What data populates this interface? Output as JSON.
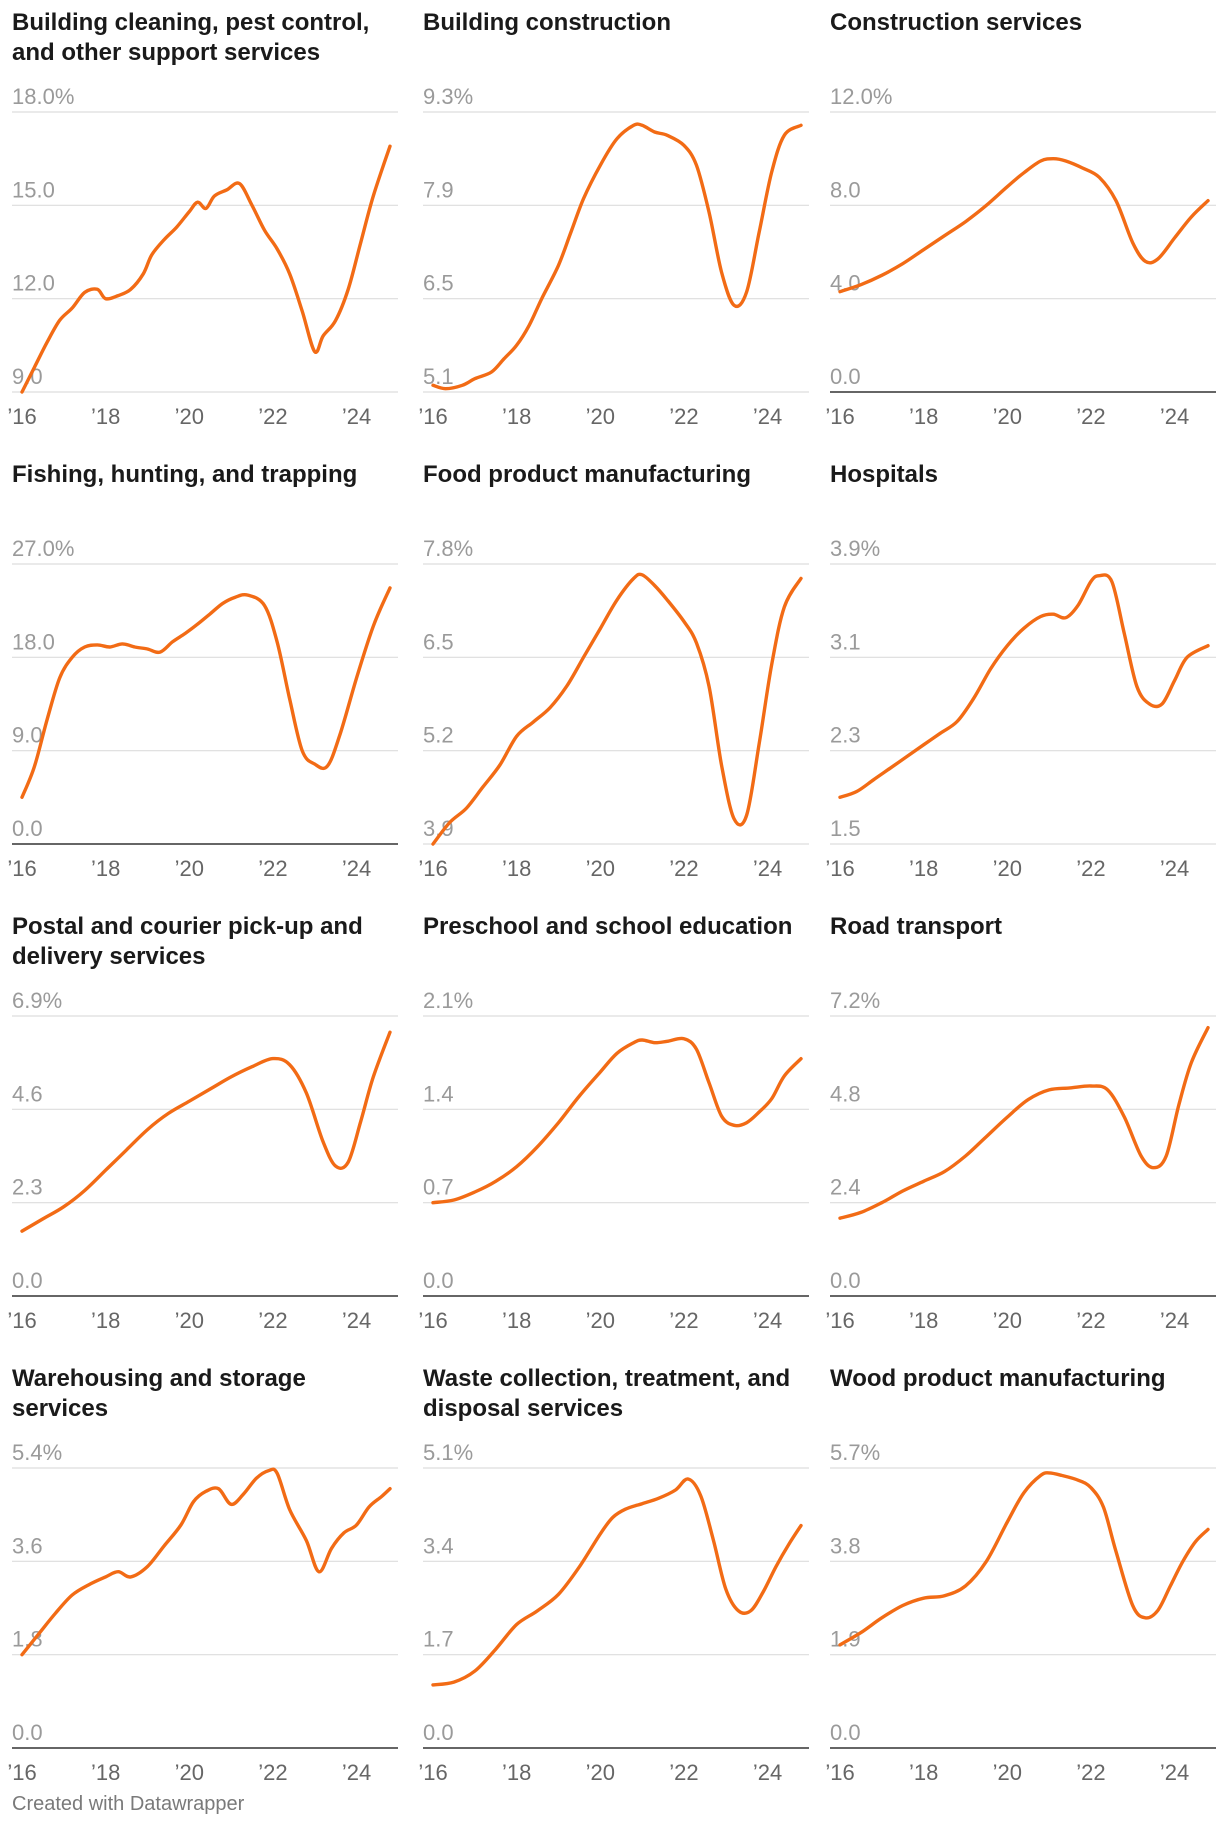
{
  "footer": "Created with Datawrapper",
  "colors": {
    "line": "#f26b15",
    "grid": "#dddddd",
    "baseline": "#333333"
  },
  "chart_data": [
    {
      "type": "line",
      "title": "Building cleaning, pest control, and other support services",
      "y_ticks": [
        "18.0%",
        "15.0",
        "12.0",
        "9.0"
      ],
      "ylim": [
        9.0,
        18.0
      ],
      "baseline_zero": false,
      "x_ticks": [
        "’16",
        "’18",
        "’20",
        "’22",
        "’24"
      ],
      "xlim": [
        2016,
        2024.8
      ],
      "x": [
        2016.0,
        2016.3,
        2016.6,
        2016.9,
        2017.2,
        2017.5,
        2017.8,
        2018.0,
        2018.3,
        2018.6,
        2018.9,
        2019.1,
        2019.4,
        2019.7,
        2020.0,
        2020.2,
        2020.4,
        2020.6,
        2020.9,
        2021.2,
        2021.5,
        2021.8,
        2022.1,
        2022.4,
        2022.7,
        2023.0,
        2023.2,
        2023.5,
        2023.8,
        2024.1,
        2024.4,
        2024.8
      ],
      "values": [
        9.0,
        9.8,
        10.6,
        11.3,
        11.7,
        12.2,
        12.3,
        12.0,
        12.1,
        12.3,
        12.8,
        13.4,
        13.9,
        14.3,
        14.8,
        15.1,
        14.9,
        15.3,
        15.5,
        15.7,
        15.0,
        14.2,
        13.6,
        12.8,
        11.6,
        10.3,
        10.8,
        11.3,
        12.3,
        13.8,
        15.3,
        16.9
      ]
    },
    {
      "type": "line",
      "title": "Building construction",
      "y_ticks": [
        "9.3%",
        "7.9",
        "6.5",
        "5.1"
      ],
      "ylim": [
        5.1,
        9.3
      ],
      "baseline_zero": false,
      "x_ticks": [
        "’16",
        "’18",
        "’20",
        "’22",
        "’24"
      ],
      "xlim": [
        2016,
        2024.8
      ],
      "x": [
        2016.0,
        2016.3,
        2016.7,
        2017.0,
        2017.4,
        2017.7,
        2018.0,
        2018.3,
        2018.6,
        2019.0,
        2019.3,
        2019.6,
        2020.0,
        2020.4,
        2020.8,
        2021.0,
        2021.3,
        2021.6,
        2022.0,
        2022.3,
        2022.6,
        2022.9,
        2023.2,
        2023.5,
        2023.8,
        2024.1,
        2024.4,
        2024.8
      ],
      "values": [
        5.2,
        5.15,
        5.2,
        5.3,
        5.4,
        5.6,
        5.8,
        6.1,
        6.5,
        7.0,
        7.5,
        8.0,
        8.5,
        8.9,
        9.1,
        9.1,
        9.0,
        8.95,
        8.8,
        8.5,
        7.8,
        6.9,
        6.4,
        6.6,
        7.5,
        8.4,
        8.95,
        9.1
      ]
    },
    {
      "type": "line",
      "title": "Construction services",
      "y_ticks": [
        "12.0%",
        "8.0",
        "4.0",
        "0.0"
      ],
      "ylim": [
        0.0,
        12.0
      ],
      "baseline_zero": true,
      "x_ticks": [
        "’16",
        "’18",
        "’20",
        "’22",
        "’24"
      ],
      "xlim": [
        2016,
        2024.8
      ],
      "x": [
        2016.0,
        2016.5,
        2017.0,
        2017.5,
        2018.0,
        2018.5,
        2019.0,
        2019.5,
        2020.0,
        2020.4,
        2020.8,
        2021.1,
        2021.4,
        2021.8,
        2022.2,
        2022.6,
        2023.0,
        2023.3,
        2023.6,
        2024.0,
        2024.4,
        2024.8
      ],
      "values": [
        4.3,
        4.6,
        5.0,
        5.5,
        6.1,
        6.7,
        7.3,
        8.0,
        8.8,
        9.4,
        9.9,
        10.0,
        9.9,
        9.6,
        9.2,
        8.2,
        6.4,
        5.6,
        5.7,
        6.6,
        7.5,
        8.2
      ]
    },
    {
      "type": "line",
      "title": "Fishing, hunting, and trapping",
      "y_ticks": [
        "27.0%",
        "18.0",
        "9.0",
        "0.0"
      ],
      "ylim": [
        0.0,
        27.0
      ],
      "baseline_zero": true,
      "x_ticks": [
        "’16",
        "’18",
        "’20",
        "’22",
        "’24"
      ],
      "xlim": [
        2016,
        2024.8
      ],
      "x": [
        2016.0,
        2016.3,
        2016.6,
        2016.9,
        2017.2,
        2017.5,
        2017.8,
        2018.1,
        2018.4,
        2018.7,
        2019.0,
        2019.3,
        2019.6,
        2019.9,
        2020.2,
        2020.5,
        2020.8,
        2021.1,
        2021.4,
        2021.8,
        2022.1,
        2022.4,
        2022.7,
        2023.0,
        2023.3,
        2023.6,
        2024.0,
        2024.4,
        2024.8
      ],
      "values": [
        4.5,
        7.5,
        12.0,
        16.0,
        18.0,
        19.0,
        19.2,
        19.0,
        19.3,
        19.0,
        18.8,
        18.5,
        19.5,
        20.3,
        21.2,
        22.2,
        23.2,
        23.8,
        24.0,
        23.0,
        19.5,
        14.0,
        9.0,
        7.7,
        7.5,
        10.5,
        16.0,
        21.0,
        24.7
      ]
    },
    {
      "type": "line",
      "title": "Food product manufacturing",
      "y_ticks": [
        "7.8%",
        "6.5",
        "5.2",
        "3.9"
      ],
      "ylim": [
        3.9,
        7.8
      ],
      "baseline_zero": false,
      "x_ticks": [
        "’16",
        "’18",
        "’20",
        "’22",
        "’24"
      ],
      "xlim": [
        2016,
        2024.8
      ],
      "x": [
        2016.0,
        2016.4,
        2016.8,
        2017.2,
        2017.6,
        2018.0,
        2018.4,
        2018.8,
        2019.2,
        2019.6,
        2020.0,
        2020.4,
        2020.8,
        2021.0,
        2021.3,
        2021.6,
        2022.0,
        2022.3,
        2022.6,
        2022.9,
        2023.2,
        2023.5,
        2023.8,
        2024.1,
        2024.4,
        2024.8
      ],
      "values": [
        3.9,
        4.2,
        4.4,
        4.7,
        5.0,
        5.4,
        5.6,
        5.8,
        6.1,
        6.5,
        6.9,
        7.3,
        7.6,
        7.65,
        7.5,
        7.3,
        7.0,
        6.7,
        6.1,
        5.0,
        4.25,
        4.3,
        5.3,
        6.4,
        7.2,
        7.6
      ]
    },
    {
      "type": "line",
      "title": "Hospitals",
      "y_ticks": [
        "3.9%",
        "3.1",
        "2.3",
        "1.5"
      ],
      "ylim": [
        1.5,
        3.9
      ],
      "baseline_zero": false,
      "x_ticks": [
        "’16",
        "’18",
        "’20",
        "’22",
        "’24"
      ],
      "xlim": [
        2016,
        2024.8
      ],
      "x": [
        2016.0,
        2016.4,
        2016.8,
        2017.2,
        2017.6,
        2018.0,
        2018.4,
        2018.8,
        2019.2,
        2019.6,
        2020.0,
        2020.4,
        2020.8,
        2021.1,
        2021.4,
        2021.7,
        2022.0,
        2022.2,
        2022.5,
        2022.8,
        2023.1,
        2023.4,
        2023.7,
        2024.0,
        2024.3,
        2024.8
      ],
      "values": [
        1.9,
        1.95,
        2.05,
        2.15,
        2.25,
        2.35,
        2.45,
        2.55,
        2.75,
        3.0,
        3.2,
        3.35,
        3.45,
        3.47,
        3.44,
        3.55,
        3.75,
        3.8,
        3.75,
        3.3,
        2.85,
        2.7,
        2.7,
        2.9,
        3.1,
        3.2
      ]
    },
    {
      "type": "line",
      "title": "Postal and courier pick-up and delivery services",
      "y_ticks": [
        "6.9%",
        "4.6",
        "2.3",
        "0.0"
      ],
      "ylim": [
        0.0,
        6.9
      ],
      "baseline_zero": true,
      "x_ticks": [
        "’16",
        "’18",
        "’20",
        "’22",
        "’24"
      ],
      "xlim": [
        2016,
        2024.8
      ],
      "x": [
        2016.0,
        2016.5,
        2017.0,
        2017.5,
        2018.0,
        2018.5,
        2019.0,
        2019.5,
        2020.0,
        2020.5,
        2021.0,
        2021.5,
        2022.0,
        2022.4,
        2022.8,
        2023.2,
        2023.5,
        2023.8,
        2024.1,
        2024.4,
        2024.8
      ],
      "values": [
        1.6,
        1.9,
        2.2,
        2.6,
        3.1,
        3.6,
        4.1,
        4.5,
        4.8,
        5.1,
        5.4,
        5.65,
        5.85,
        5.7,
        5.0,
        3.8,
        3.2,
        3.3,
        4.3,
        5.4,
        6.5
      ]
    },
    {
      "type": "line",
      "title": "Preschool and school education",
      "y_ticks": [
        "2.1%",
        "1.4",
        "0.7",
        "0.0"
      ],
      "ylim": [
        0.0,
        2.1
      ],
      "baseline_zero": true,
      "x_ticks": [
        "’16",
        "’18",
        "’20",
        "’22",
        "’24"
      ],
      "xlim": [
        2016,
        2024.8
      ],
      "x": [
        2016.0,
        2016.5,
        2017.0,
        2017.5,
        2018.0,
        2018.5,
        2019.0,
        2019.5,
        2020.0,
        2020.4,
        2020.8,
        2021.0,
        2021.3,
        2021.6,
        2022.0,
        2022.3,
        2022.6,
        2022.9,
        2023.2,
        2023.5,
        2023.8,
        2024.1,
        2024.4,
        2024.8
      ],
      "values": [
        0.7,
        0.72,
        0.78,
        0.86,
        0.97,
        1.12,
        1.3,
        1.5,
        1.68,
        1.82,
        1.9,
        1.92,
        1.9,
        1.91,
        1.93,
        1.85,
        1.6,
        1.35,
        1.28,
        1.3,
        1.38,
        1.48,
        1.65,
        1.78
      ]
    },
    {
      "type": "line",
      "title": "Road transport",
      "y_ticks": [
        "7.2%",
        "4.8",
        "2.4",
        "0.0"
      ],
      "ylim": [
        0.0,
        7.2
      ],
      "baseline_zero": true,
      "x_ticks": [
        "’16",
        "’18",
        "’20",
        "’22",
        "’24"
      ],
      "xlim": [
        2016,
        2024.8
      ],
      "x": [
        2016.0,
        2016.5,
        2017.0,
        2017.5,
        2018.0,
        2018.5,
        2019.0,
        2019.5,
        2020.0,
        2020.5,
        2021.0,
        2021.5,
        2022.0,
        2022.4,
        2022.8,
        2023.2,
        2023.5,
        2023.8,
        2024.1,
        2024.4,
        2024.8
      ],
      "values": [
        2.0,
        2.15,
        2.4,
        2.7,
        2.95,
        3.2,
        3.6,
        4.1,
        4.6,
        5.05,
        5.3,
        5.35,
        5.4,
        5.3,
        4.6,
        3.6,
        3.3,
        3.6,
        4.9,
        6.0,
        6.9
      ]
    },
    {
      "type": "line",
      "title": "Warehousing and storage services",
      "y_ticks": [
        "5.4%",
        "3.6",
        "1.8",
        "0.0"
      ],
      "ylim": [
        0.0,
        5.4
      ],
      "baseline_zero": true,
      "x_ticks": [
        "’16",
        "’18",
        "’20",
        "’22",
        "’24"
      ],
      "xlim": [
        2016,
        2024.8
      ],
      "x": [
        2016.0,
        2016.4,
        2016.8,
        2017.2,
        2017.6,
        2018.0,
        2018.3,
        2018.6,
        2019.0,
        2019.4,
        2019.8,
        2020.1,
        2020.4,
        2020.7,
        2021.0,
        2021.3,
        2021.6,
        2021.9,
        2022.1,
        2022.4,
        2022.8,
        2023.1,
        2023.4,
        2023.7,
        2024.0,
        2024.3,
        2024.6,
        2024.8
      ],
      "values": [
        1.8,
        2.2,
        2.6,
        2.95,
        3.15,
        3.3,
        3.4,
        3.3,
        3.5,
        3.9,
        4.3,
        4.75,
        4.95,
        5.0,
        4.7,
        4.9,
        5.2,
        5.35,
        5.3,
        4.6,
        4.0,
        3.4,
        3.85,
        4.15,
        4.3,
        4.65,
        4.85,
        5.0
      ]
    },
    {
      "type": "line",
      "title": "Waste collection, treatment, and disposal services",
      "y_ticks": [
        "5.1%",
        "3.4",
        "1.7",
        "0.0"
      ],
      "ylim": [
        0.0,
        5.1
      ],
      "baseline_zero": true,
      "x_ticks": [
        "’16",
        "’18",
        "’20",
        "’22",
        "’24"
      ],
      "xlim": [
        2016,
        2024.8
      ],
      "x": [
        2016.0,
        2016.5,
        2017.0,
        2017.5,
        2018.0,
        2018.5,
        2019.0,
        2019.5,
        2020.0,
        2020.3,
        2020.6,
        2021.0,
        2021.4,
        2021.8,
        2022.1,
        2022.4,
        2022.7,
        2023.0,
        2023.3,
        2023.6,
        2023.9,
        2024.2,
        2024.5,
        2024.8
      ],
      "values": [
        1.15,
        1.2,
        1.4,
        1.8,
        2.25,
        2.5,
        2.8,
        3.3,
        3.9,
        4.2,
        4.35,
        4.45,
        4.55,
        4.7,
        4.9,
        4.6,
        3.8,
        2.9,
        2.5,
        2.5,
        2.85,
        3.3,
        3.7,
        4.05
      ]
    },
    {
      "type": "line",
      "title": "Wood product manufacturing",
      "y_ticks": [
        "5.7%",
        "3.8",
        "1.9",
        "0.0"
      ],
      "ylim": [
        0.0,
        5.7
      ],
      "baseline_zero": true,
      "x_ticks": [
        "’16",
        "’18",
        "’20",
        "’22",
        "’24"
      ],
      "xlim": [
        2016,
        2024.8
      ],
      "x": [
        2016.0,
        2016.5,
        2017.0,
        2017.5,
        2018.0,
        2018.5,
        2019.0,
        2019.5,
        2020.0,
        2020.4,
        2020.8,
        2021.0,
        2021.3,
        2021.7,
        2022.0,
        2022.3,
        2022.6,
        2023.0,
        2023.3,
        2023.6,
        2023.9,
        2024.2,
        2024.5,
        2024.8
      ],
      "values": [
        2.1,
        2.35,
        2.65,
        2.9,
        3.05,
        3.1,
        3.3,
        3.8,
        4.6,
        5.2,
        5.55,
        5.6,
        5.55,
        5.45,
        5.3,
        4.9,
        4.0,
        2.9,
        2.65,
        2.8,
        3.3,
        3.8,
        4.2,
        4.45
      ]
    }
  ]
}
